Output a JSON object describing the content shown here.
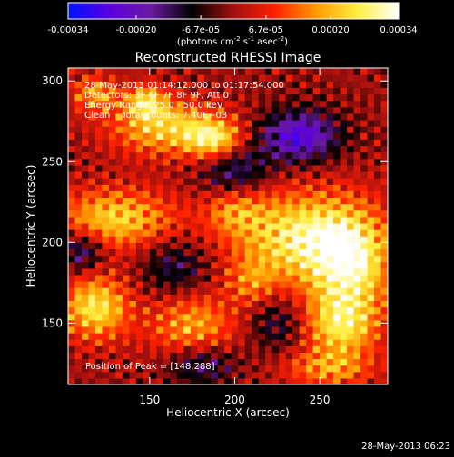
{
  "colorbar": {
    "tick_labels": [
      "-0.00034",
      "-0.00020",
      "-6.7e-05",
      "6.7e-05",
      "0.00020",
      "0.00034"
    ],
    "tick_values": [
      -0.00034,
      -0.0002,
      -6.7e-05,
      6.7e-05,
      0.0002,
      0.00034
    ],
    "range": [
      -0.00034,
      0.00034
    ],
    "units_prefix": "(photons cm",
    "units_exp1": "-2",
    "units_mid": " s",
    "units_exp2": "-1",
    "units_mid2": " asec",
    "units_exp3": "-2",
    "units_suffix": ")",
    "colors": [
      "#0010ff",
      "#5a00e0",
      "#6a1aa0",
      "#000000",
      "#a01010",
      "#ff2000",
      "#ff9a00",
      "#ffee40",
      "#ffffff"
    ]
  },
  "chart_data": {
    "type": "heatmap",
    "title": "Reconstructed RHESSI Image",
    "xlabel": "Heliocentric X (arcsec)",
    "ylabel": "Heliocentric Y (arcsec)",
    "xlim": [
      102,
      290
    ],
    "ylim": [
      112,
      308
    ],
    "xticks": [
      150,
      200,
      250
    ],
    "yticks": [
      150,
      200,
      250,
      300
    ],
    "annotations": [
      "28-May-2013 01:14:12.000 to 01:17:54.000",
      "Detectors: 3F 6F 7F 8F 9F, Att 0",
      "Energy Range: 25.0 - 50.0 keV",
      "Clean    Total counts: 7.40E+03"
    ],
    "peak_label": "Position of Peak = [148,288]",
    "peak": [
      148,
      288
    ],
    "sources": [
      {
        "x": 242,
        "y": 203,
        "sx": 30,
        "sy": 20,
        "amp": 1.0
      },
      {
        "x": 268,
        "y": 183,
        "sx": 16,
        "sy": 22,
        "amp": 0.8
      },
      {
        "x": 130,
        "y": 215,
        "sx": 24,
        "sy": 13,
        "amp": 0.8
      },
      {
        "x": 158,
        "y": 272,
        "sx": 22,
        "sy": 12,
        "amp": 0.8
      },
      {
        "x": 188,
        "y": 264,
        "sx": 12,
        "sy": 9,
        "amp": 0.85
      },
      {
        "x": 118,
        "y": 292,
        "sx": 10,
        "sy": 8,
        "amp": 0.6
      },
      {
        "x": 148,
        "y": 288,
        "sx": 8,
        "sy": 7,
        "amp": 0.7
      },
      {
        "x": 118,
        "y": 160,
        "sx": 14,
        "sy": 14,
        "amp": 0.9
      },
      {
        "x": 175,
        "y": 148,
        "sx": 18,
        "sy": 14,
        "amp": 0.65
      },
      {
        "x": 262,
        "y": 148,
        "sx": 16,
        "sy": 14,
        "amp": 0.75
      },
      {
        "x": 200,
        "y": 220,
        "sx": 12,
        "sy": 10,
        "amp": 0.45
      },
      {
        "x": 255,
        "y": 122,
        "sx": 18,
        "sy": 8,
        "amp": 0.55
      },
      {
        "x": 210,
        "y": 175,
        "sx": 10,
        "sy": 10,
        "amp": 0.4
      },
      {
        "x": 238,
        "y": 266,
        "sx": 16,
        "sy": 11,
        "amp": -0.9
      },
      {
        "x": 110,
        "y": 195,
        "sx": 9,
        "sy": 9,
        "amp": -0.6
      },
      {
        "x": 180,
        "y": 125,
        "sx": 14,
        "sy": 9,
        "amp": -0.55
      },
      {
        "x": 200,
        "y": 245,
        "sx": 14,
        "sy": 11,
        "amp": -0.55
      },
      {
        "x": 165,
        "y": 185,
        "sx": 14,
        "sy": 12,
        "amp": -0.45
      },
      {
        "x": 225,
        "y": 150,
        "sx": 12,
        "sy": 12,
        "amp": -0.4
      }
    ]
  },
  "footer": {
    "timestamp": "28-May-2013 06:23"
  }
}
